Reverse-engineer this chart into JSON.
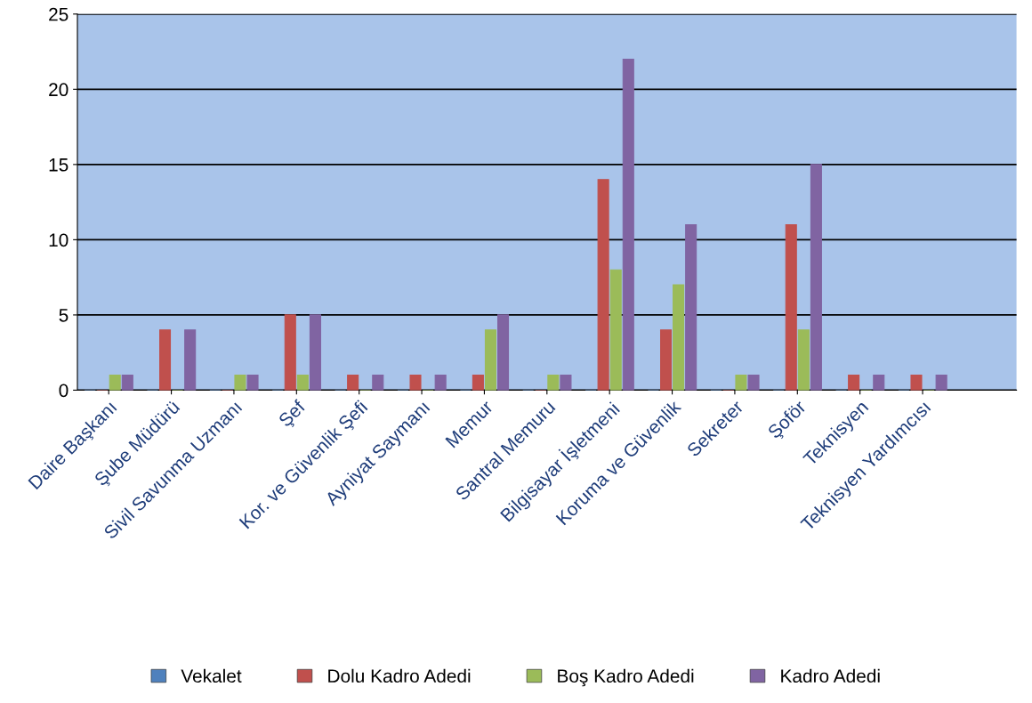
{
  "chart_data": {
    "type": "bar",
    "categories": [
      "Daire Başkanı",
      "Şube Müdürü",
      "Sivil Savunma Uzmanı",
      "Şef",
      "Kor. ve Güvenlik Şefi",
      "Ayniyat Saymanı",
      "Memur",
      "Santral Memuru",
      "Bilgisayar İşletmeni",
      "Koruma ve Güvenlik",
      "Sekreter",
      "Şoför",
      "Teknisyen",
      "Teknisyen Yardımcısı"
    ],
    "series": [
      {
        "name": "Vekalet",
        "color": "#4f81bd",
        "values": [
          0,
          0,
          0,
          0,
          0,
          0,
          0,
          0,
          0,
          0,
          0,
          0,
          0,
          0
        ]
      },
      {
        "name": "Dolu Kadro Adedi",
        "color": "#c0504d",
        "values": [
          0,
          4,
          0,
          5,
          1,
          1,
          1,
          0,
          14,
          4,
          0,
          11,
          1,
          1
        ]
      },
      {
        "name": "Boş Kadro Adedi",
        "color": "#9bbb59",
        "values": [
          1,
          0,
          1,
          1,
          0,
          0,
          4,
          1,
          8,
          7,
          1,
          4,
          0,
          0
        ]
      },
      {
        "name": "Kadro Adedi",
        "color": "#8064a2",
        "values": [
          1,
          4,
          1,
          5,
          1,
          1,
          5,
          1,
          22,
          11,
          1,
          15,
          1,
          1
        ]
      }
    ],
    "ylim": [
      0,
      25
    ],
    "yticks": [
      0,
      5,
      10,
      15,
      20,
      25
    ],
    "grid": "y",
    "legend": "bottom"
  }
}
